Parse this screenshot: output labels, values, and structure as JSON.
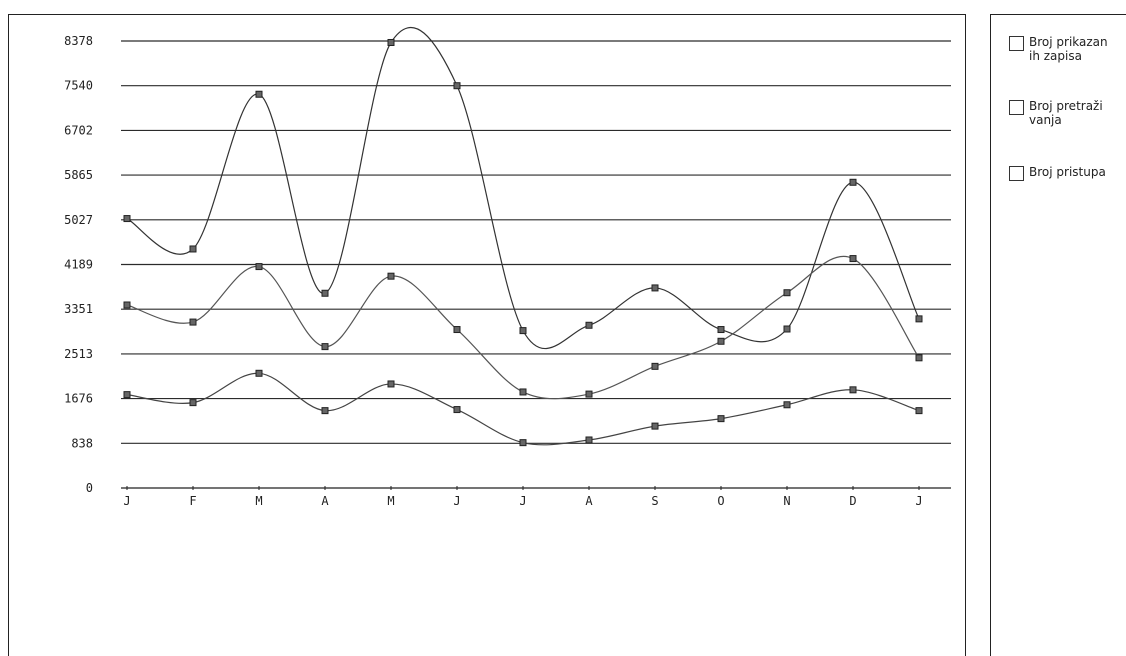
{
  "chart_data": {
    "type": "line",
    "title": "",
    "xlabel": "",
    "ylabel": "",
    "categories": [
      "J",
      "F",
      "M",
      "A",
      "M",
      "J",
      "J",
      "A",
      "S",
      "O",
      "N",
      "D",
      "J"
    ],
    "y_tick_labels": [
      "0",
      "838",
      "1676",
      "2513",
      "3351",
      "4189",
      "5027",
      "5865",
      "6702",
      "7540",
      "8378"
    ],
    "y_ticks": [
      0,
      838,
      1676,
      2513,
      3351,
      4189,
      5027,
      5865,
      6702,
      7540,
      8378
    ],
    "ylim": [
      0,
      8378
    ],
    "grid": true,
    "legend_position": "right",
    "series": [
      {
        "name": "Broj prikazanih zapisa",
        "color": "#333333",
        "values": [
          5050,
          4480,
          7380,
          3650,
          8350,
          7540,
          2950,
          3050,
          3750,
          2970,
          2980,
          5730,
          3170
        ]
      },
      {
        "name": "Broj pretraživanja",
        "color": "#555555",
        "values": [
          3430,
          3110,
          4150,
          2650,
          3970,
          2970,
          1800,
          1760,
          2280,
          2750,
          3660,
          4300,
          2440
        ]
      },
      {
        "name": "Broj pristupa",
        "color": "#444444",
        "values": [
          1750,
          1600,
          2150,
          1450,
          1950,
          1470,
          850,
          900,
          1160,
          1300,
          1560,
          1840,
          1450
        ]
      }
    ]
  },
  "legend": {
    "items": [
      {
        "label": "Broj prikazanih zapisa"
      },
      {
        "label": "Broj pretraživanja"
      },
      {
        "label": "Broj pristupa"
      }
    ]
  }
}
